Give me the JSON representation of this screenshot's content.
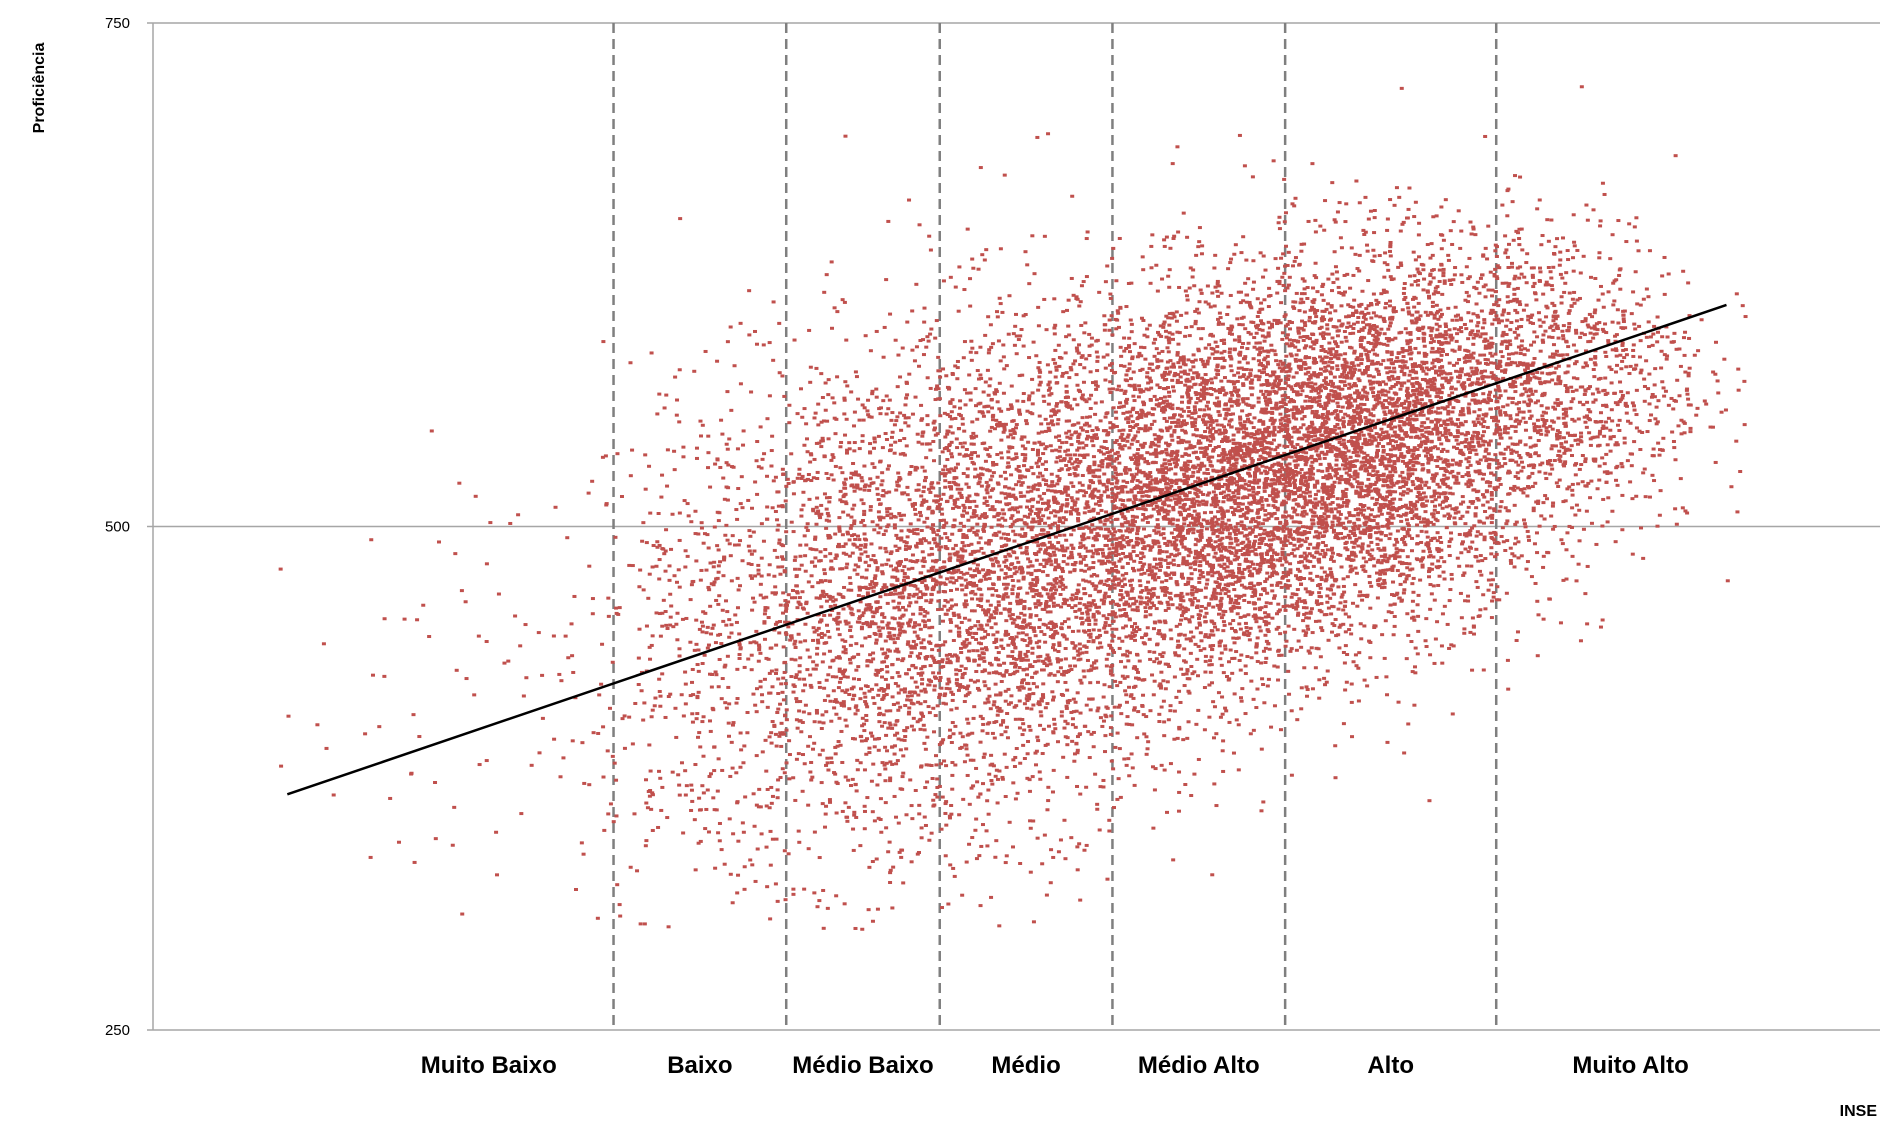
{
  "chart_data": {
    "type": "scatter",
    "title": "",
    "xlabel": "INSE",
    "ylabel": "Proficiência",
    "ylim": [
      250,
      750
    ],
    "yticks": [
      250,
      500,
      750
    ],
    "grid": "horizontal",
    "point_color": "#c0504d",
    "trend_color": "#000000",
    "categories": [
      "Muito Baixo",
      "Baixo",
      "Médio Baixo",
      "Médio",
      "Médio Alto",
      "Alto",
      "Muito Alto"
    ],
    "category_boundaries": [
      2.4,
      3.3,
      4.1,
      5.0,
      5.9,
      7.0
    ],
    "xlim": [
      0,
      9.0
    ],
    "trendline": {
      "x": [
        0.7,
        8.2
      ],
      "y": [
        367,
        610
      ]
    },
    "point_clusters": [
      {
        "x_mean": 1.8,
        "x_sd": 0.55,
        "y_mean": 410,
        "y_sd": 55,
        "n": 90
      },
      {
        "x_mean": 2.9,
        "x_sd": 0.35,
        "y_mean": 440,
        "y_sd": 65,
        "n": 500
      },
      {
        "x_mean": 3.7,
        "x_sd": 0.4,
        "y_mean": 455,
        "y_sd": 65,
        "n": 1500
      },
      {
        "x_mean": 4.5,
        "x_sd": 0.45,
        "y_mean": 480,
        "y_sd": 60,
        "n": 2600
      },
      {
        "x_mean": 5.5,
        "x_sd": 0.45,
        "y_mean": 515,
        "y_sd": 50,
        "n": 3800
      },
      {
        "x_mean": 6.4,
        "x_sd": 0.45,
        "y_mean": 545,
        "y_sd": 45,
        "n": 3600
      },
      {
        "x_mean": 7.3,
        "x_sd": 0.4,
        "y_mean": 575,
        "y_sd": 40,
        "n": 1100
      }
    ]
  }
}
